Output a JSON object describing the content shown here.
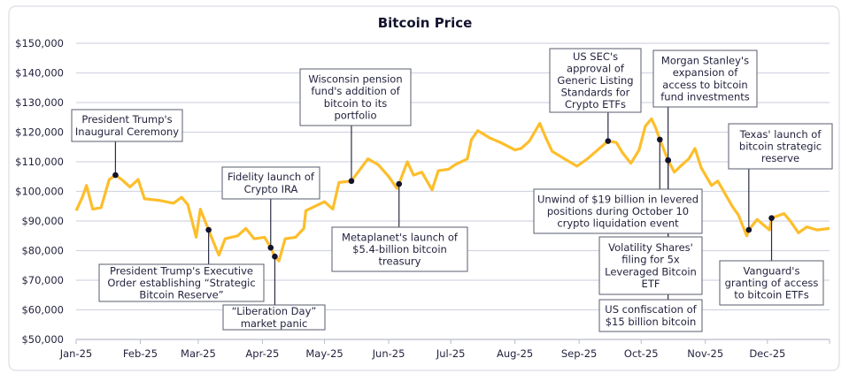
{
  "chart_data": {
    "type": "line",
    "title": "Bitcoin Price",
    "xlabel": "",
    "ylabel": "",
    "ylim": [
      50000,
      150000
    ],
    "y_ticks": [
      "$50,000",
      "$60,000",
      "$70,000",
      "$80,000",
      "$90,000",
      "$100,000",
      "$110,000",
      "$120,000",
      "$130,000",
      "$140,000",
      "$150,000"
    ],
    "x_ticks": [
      "Jan-25",
      "Feb-25",
      "Mar-25",
      "Apr-25",
      "May-25",
      "Jun-25",
      "Jul-25",
      "Aug-25",
      "Sep-25",
      "Oct-25",
      "Nov-25",
      "Dec-25"
    ],
    "grid": true,
    "line_color": "#FDBE2B",
    "series": [
      {
        "x": [
          "2025-01-01",
          "2025-01-04",
          "2025-01-06",
          "2025-01-09",
          "2025-01-13",
          "2025-01-17",
          "2025-01-20",
          "2025-01-23",
          "2025-01-27",
          "2025-01-31",
          "2025-02-03",
          "2025-02-10",
          "2025-02-17",
          "2025-02-21",
          "2025-02-24",
          "2025-02-28",
          "2025-03-02",
          "2025-03-06",
          "2025-03-10",
          "2025-03-11",
          "2025-03-14",
          "2025-03-20",
          "2025-03-24",
          "2025-03-28",
          "2025-04-02",
          "2025-04-05",
          "2025-04-07",
          "2025-04-09",
          "2025-04-12",
          "2025-04-17",
          "2025-04-21",
          "2025-04-22",
          "2025-04-25",
          "2025-05-01",
          "2025-05-05",
          "2025-05-08",
          "2025-05-14",
          "2025-05-22",
          "2025-05-27",
          "2025-06-01",
          "2025-06-05",
          "2025-06-06",
          "2025-06-10",
          "2025-06-13",
          "2025-06-17",
          "2025-06-22",
          "2025-06-25",
          "2025-06-30",
          "2025-07-03",
          "2025-07-09",
          "2025-07-11",
          "2025-07-14",
          "2025-07-20",
          "2025-07-25",
          "2025-08-01",
          "2025-08-04",
          "2025-08-08",
          "2025-08-13",
          "2025-08-16",
          "2025-08-19",
          "2025-08-25",
          "2025-08-31",
          "2025-09-05",
          "2025-09-10",
          "2025-09-15",
          "2025-09-19",
          "2025-09-22",
          "2025-09-26",
          "2025-09-30",
          "2025-10-03",
          "2025-10-06",
          "2025-10-08",
          "2025-10-10",
          "2025-10-14",
          "2025-10-17",
          "2025-10-20",
          "2025-10-24",
          "2025-10-27",
          "2025-10-30",
          "2025-11-04",
          "2025-11-07",
          "2025-11-14",
          "2025-11-17",
          "2025-11-21",
          "2025-11-22",
          "2025-11-26",
          "2025-12-02",
          "2025-12-03",
          "2025-12-09",
          "2025-12-12",
          "2025-12-16",
          "2025-12-20",
          "2025-12-25",
          "2025-12-31"
        ],
        "y": [
          93500,
          98000,
          102000,
          94000,
          94500,
          104000,
          105500,
          104000,
          101500,
          104000,
          97500,
          97000,
          96000,
          98000,
          95500,
          84500,
          94000,
          87000,
          80000,
          78500,
          84000,
          85000,
          87500,
          84000,
          84500,
          81000,
          78000,
          76500,
          84000,
          84500,
          87500,
          93500,
          94500,
          96500,
          94000,
          103000,
          103500,
          111000,
          109000,
          105000,
          101000,
          102500,
          110000,
          105500,
          106500,
          100500,
          107000,
          107500,
          109000,
          111000,
          117500,
          120500,
          118000,
          116500,
          114000,
          114500,
          117000,
          123000,
          118000,
          113500,
          111000,
          108500,
          111000,
          114000,
          117000,
          116500,
          113000,
          109500,
          114000,
          122000,
          124500,
          121500,
          117500,
          110500,
          106500,
          108500,
          111000,
          114500,
          108000,
          102000,
          103500,
          95000,
          92000,
          85000,
          87000,
          90500,
          87000,
          91000,
          92500,
          90000,
          86000,
          88000,
          87000,
          87500
        ]
      }
    ],
    "annotations": [
      {
        "lines": [
          "President Trump's",
          "Inaugural Ceremony"
        ],
        "date": "2025-01-20",
        "value": 105500
      },
      {
        "lines": [
          "Wisconsin pension",
          "fund's addition of",
          "bitcoin to its",
          "portfolio"
        ],
        "date": "2025-05-14",
        "value": 103500
      },
      {
        "lines": [
          "Fidelity launch of",
          "Crypto IRA"
        ],
        "date": "2025-04-05",
        "value": 81000
      },
      {
        "lines": [
          "“Liberation Day”",
          "market panic"
        ],
        "date": "2025-04-07",
        "value": 78000
      },
      {
        "lines": [
          "President Trump's Executive",
          "Order establishing “Strategic",
          "Bitcoin Reserve”"
        ],
        "date": "2025-03-06",
        "value": 87000
      },
      {
        "lines": [
          "Metaplanet's launch of",
          "$5.4-billion bitcoin",
          "treasury"
        ],
        "date": "2025-06-06",
        "value": 102500
      },
      {
        "lines": [
          "US SEC's",
          "approval of",
          "Generic Listing",
          "Standards for",
          "Crypto ETFs"
        ],
        "date": "2025-09-15",
        "value": 117000
      },
      {
        "lines": [
          "Morgan Stanley's",
          "expansion of",
          "access to bitcoin",
          "fund investments"
        ],
        "date": "2025-10-14",
        "value": 110500
      },
      {
        "lines": [
          "Texas' launch of",
          "bitcoin strategic",
          "reserve"
        ],
        "date": "2025-11-22",
        "value": 87000
      },
      {
        "lines": [
          "Unwind of $19 billion in levered",
          "positions during October 10",
          "crypto liquidation event"
        ],
        "date": "2025-10-10",
        "value": 117500
      },
      {
        "lines": [
          "Volatility Shares'",
          "filing for 5x",
          "Leveraged Bitcoin",
          "ETF"
        ],
        "date": "2025-10-14",
        "value": 110500
      },
      {
        "lines": [
          "US confiscation of",
          "$15 billion bitcoin"
        ],
        "date": "2025-10-14",
        "value": 110500
      },
      {
        "lines": [
          "Vanguard's",
          "granting of access",
          "to bitcoin ETFs"
        ],
        "date": "2025-12-03",
        "value": 91000
      }
    ]
  }
}
